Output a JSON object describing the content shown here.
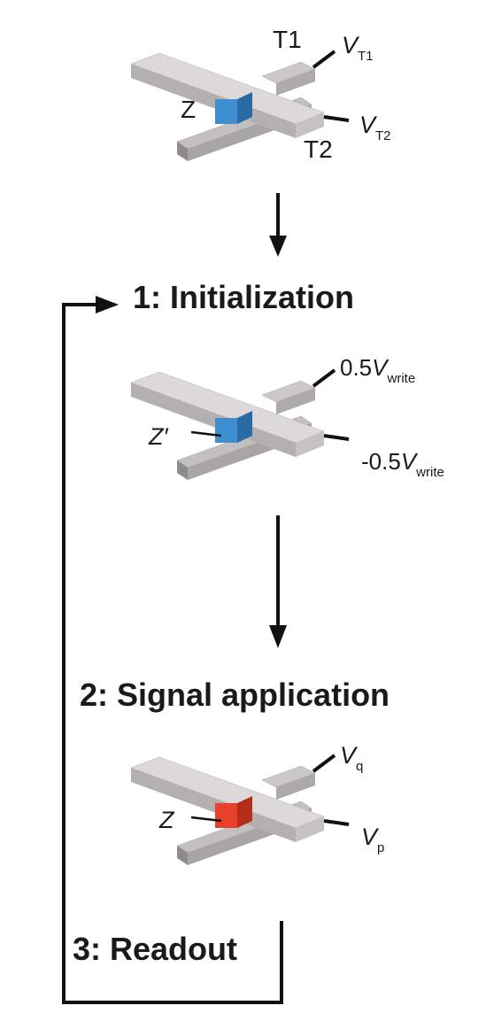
{
  "steps": {
    "initialization": "1: Initialization",
    "signal_application": "2: Signal application",
    "readout": "3: Readout"
  },
  "device_top": {
    "top_electrode": "T1",
    "bottom_electrode": "T2",
    "element": "Z",
    "voltage_top": "V",
    "voltage_top_sub": "T1",
    "voltage_bottom": "V",
    "voltage_bottom_sub": "T2",
    "element_color": "#3f8fd0"
  },
  "device_init": {
    "element": "Z′",
    "voltage_top_prefix": "0.5",
    "voltage_top": "V",
    "voltage_top_sub": "write",
    "voltage_bottom_prefix": "-0.5",
    "voltage_bottom": "V",
    "voltage_bottom_sub": "write",
    "element_color": "#3f8fd0"
  },
  "device_signal": {
    "element": "Z",
    "voltage_top": "V",
    "voltage_top_sub": "q",
    "voltage_bottom": "V",
    "voltage_bottom_sub": "p",
    "element_color": "#e8402a"
  }
}
